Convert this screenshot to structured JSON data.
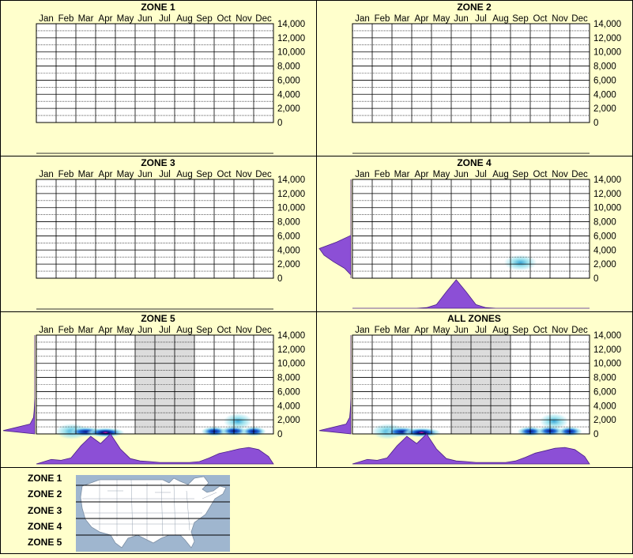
{
  "colors": {
    "background": "#ffffcc",
    "density_fill": "#8c4fd6",
    "density_stroke": "#4b1f8a",
    "heat_low": "#9fe3ee",
    "heat_mid": "#1f6fd6",
    "heat_high": "#08108c",
    "heat_peak": "#ff1aa0",
    "shade": "#dcdcdc",
    "grid": "#000000",
    "map_water": "#9fb6cf",
    "map_land": "#ffffff"
  },
  "months": [
    "Jan",
    "Feb",
    "Mar",
    "Apr",
    "May",
    "Jun",
    "Jul",
    "Aug",
    "Sep",
    "Oct",
    "Nov",
    "Dec"
  ],
  "y_ticks": [
    "14,000",
    "12,000",
    "10,000",
    "8,000",
    "6,000",
    "4,000",
    "2,000",
    "0"
  ],
  "chart_data": [
    {
      "type": "heatmap",
      "title": "ZONE 1",
      "ylim": [
        0,
        14000
      ],
      "shaded_months": [],
      "hotspots": [],
      "month_density": [],
      "elev_density": []
    },
    {
      "type": "heatmap",
      "title": "ZONE 2",
      "ylim": [
        0,
        14000
      ],
      "shaded_months": [],
      "hotspots": [],
      "month_density": [],
      "elev_density": []
    },
    {
      "type": "heatmap",
      "title": "ZONE 3",
      "ylim": [
        0,
        14000
      ],
      "shaded_months": [],
      "hotspots": [],
      "month_density": [],
      "elev_density": []
    },
    {
      "type": "heatmap",
      "title": "ZONE 4",
      "ylim": [
        0,
        14000
      ],
      "shaded_months": [],
      "hotspots": [
        {
          "month": 9.0,
          "elev": 2200,
          "intensity": 0.35
        }
      ],
      "month_density": [
        0,
        0,
        0,
        0,
        0,
        0,
        0,
        0.02,
        0.12,
        0.55,
        0.95,
        0.55,
        0.12,
        0.02,
        0,
        0,
        0,
        0,
        0,
        0,
        0,
        0,
        0,
        0
      ],
      "elev_density": [
        0,
        0.2,
        0.55,
        0.85,
        1.0,
        0.45,
        0,
        0,
        0,
        0,
        0,
        0,
        0,
        0,
        0
      ]
    },
    {
      "type": "heatmap",
      "title": "ZONE 5",
      "ylim": [
        0,
        14000
      ],
      "shaded_months": [
        6,
        7,
        8
      ],
      "hotspots": [
        {
          "month": 2.3,
          "elev": 350,
          "intensity": 0.35
        },
        {
          "month": 3.0,
          "elev": 300,
          "intensity": 0.85
        },
        {
          "month": 4.0,
          "elev": 200,
          "intensity": 1.0
        },
        {
          "month": 9.5,
          "elev": 350,
          "intensity": 0.45
        },
        {
          "month": 10.5,
          "elev": 400,
          "intensity": 0.5
        },
        {
          "month": 11.5,
          "elev": 350,
          "intensity": 0.4
        },
        {
          "month": 10.7,
          "elev": 1800,
          "intensity": 0.15
        }
      ],
      "month_density": [
        0.05,
        0.15,
        0.12,
        0.2,
        0.6,
        0.92,
        0.68,
        1.0,
        0.5,
        0.18,
        0.1,
        0.08,
        0.05,
        0.05,
        0.05,
        0.05,
        0.08,
        0.2,
        0.35,
        0.42,
        0.5,
        0.55,
        0.48,
        0.25
      ],
      "elev_density": [
        1.0,
        0.15,
        0.04,
        0.02,
        0.01,
        0,
        0,
        0,
        0,
        0,
        0,
        0,
        0,
        0,
        0
      ]
    },
    {
      "type": "heatmap",
      "title": "ALL ZONES",
      "ylim": [
        0,
        14000
      ],
      "shaded_months": [
        6,
        7,
        8
      ],
      "hotspots": [
        {
          "month": 2.3,
          "elev": 350,
          "intensity": 0.35
        },
        {
          "month": 3.0,
          "elev": 300,
          "intensity": 0.85
        },
        {
          "month": 4.0,
          "elev": 200,
          "intensity": 1.0
        },
        {
          "month": 9.5,
          "elev": 350,
          "intensity": 0.45
        },
        {
          "month": 10.5,
          "elev": 400,
          "intensity": 0.5
        },
        {
          "month": 11.5,
          "elev": 350,
          "intensity": 0.4
        },
        {
          "month": 10.7,
          "elev": 1800,
          "intensity": 0.15
        }
      ],
      "month_density": [
        0.05,
        0.15,
        0.12,
        0.2,
        0.6,
        0.92,
        0.68,
        1.0,
        0.5,
        0.18,
        0.1,
        0.08,
        0.05,
        0.05,
        0.05,
        0.05,
        0.1,
        0.22,
        0.36,
        0.44,
        0.52,
        0.55,
        0.48,
        0.25
      ],
      "elev_density": [
        1.0,
        0.15,
        0.04,
        0.02,
        0.01,
        0,
        0,
        0,
        0,
        0,
        0,
        0,
        0,
        0,
        0
      ]
    }
  ],
  "legend": {
    "zones": [
      "ZONE 1",
      "ZONE 2",
      "ZONE 3",
      "ZONE 4",
      "ZONE 5"
    ]
  }
}
